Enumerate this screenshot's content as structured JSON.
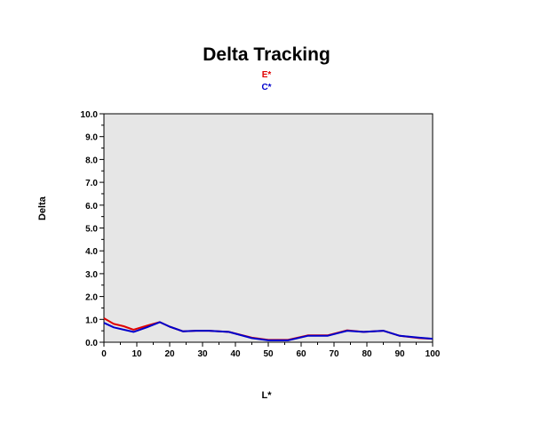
{
  "chart_data": {
    "type": "line",
    "title": "Delta Tracking",
    "xlabel": "L*",
    "ylabel": "Delta",
    "xlim": [
      0,
      100
    ],
    "ylim": [
      0,
      10
    ],
    "x_ticks": [
      0,
      10,
      20,
      30,
      40,
      50,
      60,
      70,
      80,
      90,
      100
    ],
    "y_ticks": [
      "0.0",
      "1.0",
      "2.0",
      "3.0",
      "4.0",
      "5.0",
      "6.0",
      "7.0",
      "8.0",
      "9.0",
      "10.0"
    ],
    "legend_position": "top-center",
    "plot_background": "#e6e6e6",
    "series": [
      {
        "name": "E*",
        "color": "#e00000",
        "x": [
          0,
          3,
          6,
          9,
          13,
          17,
          20,
          24,
          28,
          32,
          38,
          45,
          50,
          56,
          62,
          68,
          74,
          79,
          85,
          90,
          96,
          100
        ],
        "y": [
          1.05,
          0.8,
          0.7,
          0.55,
          0.72,
          0.88,
          0.68,
          0.48,
          0.5,
          0.5,
          0.45,
          0.2,
          0.1,
          0.1,
          0.3,
          0.3,
          0.52,
          0.45,
          0.5,
          0.28,
          0.18,
          0.15
        ]
      },
      {
        "name": "C*",
        "color": "#0000cc",
        "x": [
          0,
          3,
          6,
          9,
          13,
          17,
          20,
          24,
          28,
          32,
          38,
          45,
          50,
          56,
          62,
          68,
          74,
          79,
          85,
          90,
          96,
          100
        ],
        "y": [
          0.85,
          0.65,
          0.55,
          0.45,
          0.65,
          0.88,
          0.68,
          0.48,
          0.5,
          0.5,
          0.45,
          0.18,
          0.08,
          0.08,
          0.28,
          0.28,
          0.5,
          0.45,
          0.5,
          0.28,
          0.2,
          0.15
        ]
      }
    ]
  }
}
